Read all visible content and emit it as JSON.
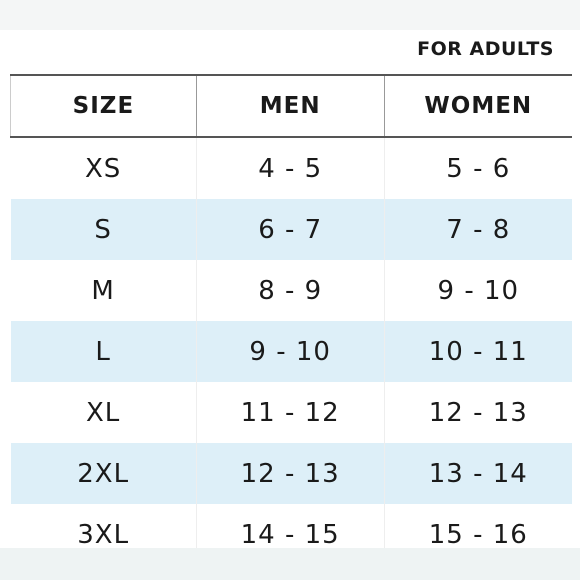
{
  "header": {
    "subtitle": "FOR ADULTS"
  },
  "table": {
    "columns": [
      "SIZE",
      "MEN",
      "WOMEN"
    ],
    "rows": [
      [
        "XS",
        "4 - 5",
        "5 - 6"
      ],
      [
        "S",
        "6 - 7",
        "7 - 8"
      ],
      [
        "M",
        "8 - 9",
        "9 - 10"
      ],
      [
        "L",
        "9 - 10",
        "10 - 11"
      ],
      [
        "XL",
        "11 - 12",
        "12 - 13"
      ],
      [
        "2XL",
        "12 - 13",
        "13 - 14"
      ],
      [
        "3XL",
        "14 - 15",
        "15 - 16"
      ]
    ]
  }
}
